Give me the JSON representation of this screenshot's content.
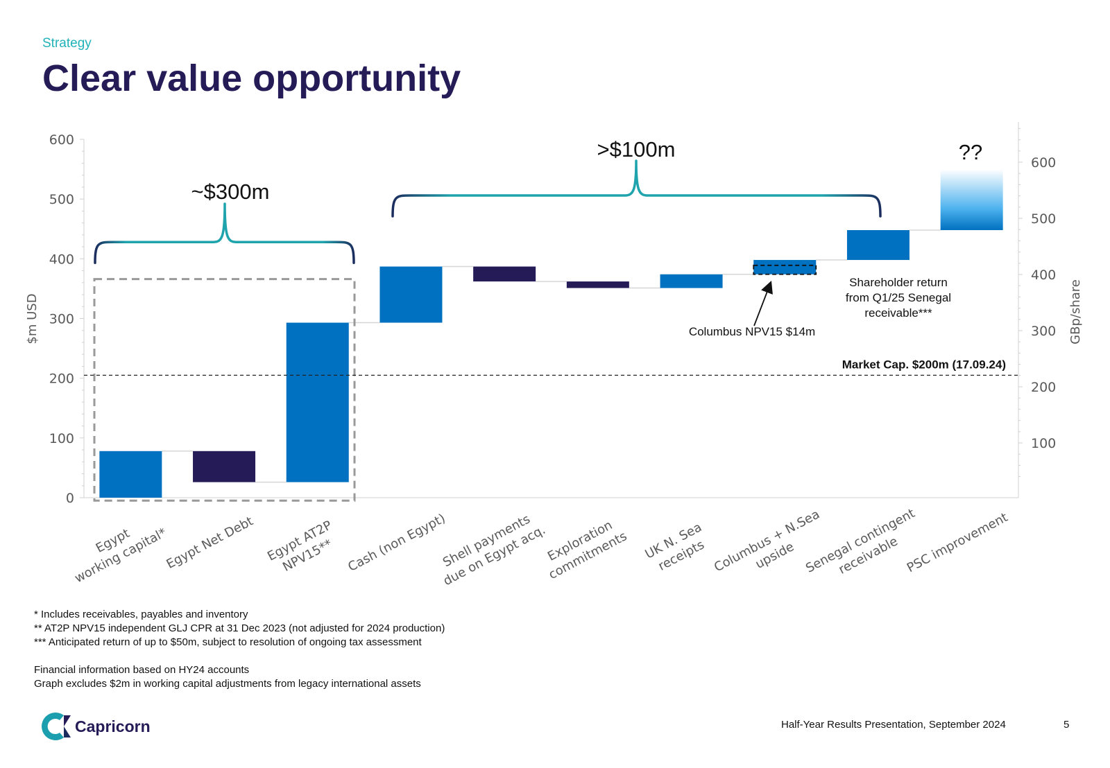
{
  "header": {
    "section": "Strategy",
    "title": "Clear value opportunity"
  },
  "chart_data": {
    "type": "bar",
    "subtype": "waterfall",
    "ylabel": "$m USD",
    "y2label": "GBp/share",
    "ylim": [
      0,
      600
    ],
    "yticks": [
      0,
      100,
      200,
      300,
      400,
      500,
      600
    ],
    "y2ticks": [
      100,
      200,
      300,
      400,
      500,
      600
    ],
    "categories": [
      [
        "Egypt",
        "working capital*"
      ],
      [
        "Egypt Net Debt"
      ],
      [
        "Egypt AT2P",
        "NPV15**"
      ],
      [
        "Cash (non Egypt)"
      ],
      [
        "Shell payments",
        "due on Egypt acq."
      ],
      [
        "Exploration",
        "commitments"
      ],
      [
        "UK N. Sea",
        "receipts"
      ],
      [
        "Columbus + N.Sea",
        "upside"
      ],
      [
        "Senegal contingent",
        "receivable"
      ],
      [
        "PSC improvement"
      ]
    ],
    "bars": [
      {
        "start": 0,
        "end": 78,
        "kind": "increase"
      },
      {
        "start": 78,
        "end": 26,
        "kind": "decrease"
      },
      {
        "start": 26,
        "end": 293,
        "kind": "increase"
      },
      {
        "start": 293,
        "end": 387,
        "kind": "increase"
      },
      {
        "start": 387,
        "end": 362,
        "kind": "decrease"
      },
      {
        "start": 362,
        "end": 351,
        "kind": "decrease"
      },
      {
        "start": 351,
        "end": 374,
        "kind": "increase"
      },
      {
        "start": 374,
        "end": 398,
        "kind": "increase"
      },
      {
        "start": 398,
        "end": 448,
        "kind": "increase"
      },
      {
        "start": 448,
        "end": 550,
        "kind": "uncertain"
      }
    ],
    "values": [
      78,
      -52,
      267,
      94,
      -25,
      -11,
      23,
      24,
      50,
      null
    ],
    "reference_line": {
      "value": 205,
      "label": "Market Cap. $200m (17.09.24)"
    },
    "brackets": [
      {
        "label": "~$300m",
        "from_category": 0,
        "to_category": 2
      },
      {
        "label": ">$100m",
        "from_category": 3,
        "to_category": 8
      }
    ],
    "question_label": "??",
    "annotations": {
      "columbus": "Columbus NPV15 $14m",
      "shareholder": [
        "Shareholder return",
        "from Q1/25 Senegal",
        "receivable***"
      ]
    },
    "colors": {
      "increase": "#0070c0",
      "decrease": "#241b57",
      "bracket_start": "#1fb2b8",
      "bracket_end": "#1b2d5e",
      "axis": "#d0d0d0",
      "tick_text": "#595959",
      "connector": "#d6d6d6",
      "dashed_box": "#999999",
      "reference": "#222222"
    }
  },
  "notes": {
    "lines": [
      "* Includes receivables, payables and inventory",
      "** AT2P NPV15 independent GLJ CPR at 31 Dec 2023 (not adjusted for 2024 production)",
      "*** Anticipated return of up to $50m, subject to resolution of ongoing tax assessment",
      "",
      "Financial information based on HY24 accounts",
      "Graph excludes $2m in working capital adjustments from legacy international assets"
    ]
  },
  "footer": {
    "logo_text": "Capricorn",
    "logo_icon": "capricorn-c-logo-icon",
    "presentation": "Half-Year Results Presentation, September 2024",
    "page": "5"
  }
}
